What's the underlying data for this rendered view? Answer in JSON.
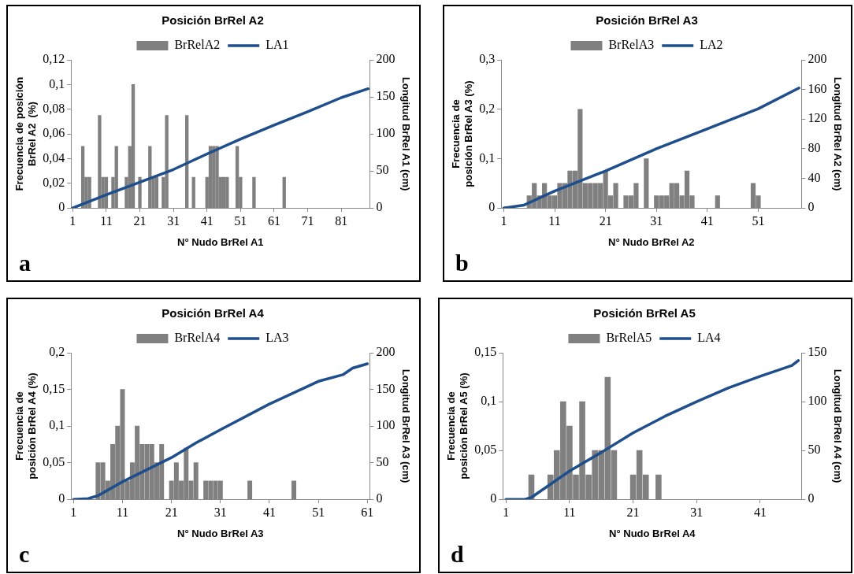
{
  "chart_data": [
    {
      "type": "bar",
      "title": "Posición BrRel A2",
      "xlabel": "N° Nudo BrRel A1",
      "ylabel": "Frecuencia de posición BrRel A2  (%)",
      "y2label": "Longitud BrRel A1 (cm)",
      "annotations": [
        "a"
      ],
      "legend": "top",
      "xlim": [
        0.5,
        89.5
      ],
      "xticks": [
        1,
        11,
        21,
        31,
        41,
        51,
        61,
        71,
        81
      ],
      "ylim": [
        0,
        0.12
      ],
      "yticks": [
        {
          "value": 0,
          "label": "0"
        },
        {
          "value": 0.02,
          "label": "0,02"
        },
        {
          "value": 0.04,
          "label": "0,04"
        },
        {
          "value": 0.06,
          "label": "0,06"
        },
        {
          "value": 0.08,
          "label": "0,08"
        },
        {
          "value": 0.1,
          "label": "0,1"
        },
        {
          "value": 0.12,
          "label": "0,12"
        }
      ],
      "y2lim": [
        0,
        200
      ],
      "y2ticks": [
        0,
        50,
        100,
        150,
        200
      ],
      "series": [
        {
          "name": "BrRelA2",
          "color": "#808080",
          "x": [
            4,
            5,
            6,
            9,
            10,
            11,
            13,
            14,
            17,
            18,
            19,
            21,
            24,
            25,
            26,
            28,
            29,
            35,
            37,
            41,
            42,
            43,
            44,
            45,
            46,
            47,
            50,
            51,
            55,
            64
          ],
          "values": [
            0.05,
            0.025,
            0.025,
            0.075,
            0.025,
            0.025,
            0.025,
            0.05,
            0.025,
            0.05,
            0.1,
            0.025,
            0.05,
            0.025,
            0.025,
            0.025,
            0.075,
            0.075,
            0.025,
            0.025,
            0.05,
            0.05,
            0.05,
            0.025,
            0.025,
            0.025,
            0.05,
            0.025,
            0.025,
            0.025
          ]
        },
        {
          "name": "LA1",
          "type": "line",
          "axis": "y2",
          "color": "#1f4e8c",
          "x": [
            1,
            11,
            21,
            31,
            41,
            51,
            61,
            71,
            81,
            89
          ],
          "values": [
            0,
            18,
            35,
            52,
            73,
            93,
            112,
            130,
            149,
            161
          ]
        }
      ]
    },
    {
      "type": "bar",
      "title": "Posición BrRel A3",
      "xlabel": "N° Nudo BrRel A2",
      "ylabel": "Frecuencia de posición BrRel A3 (%)",
      "y2label": "Longitud BrRel A2 (cm)",
      "annotations": [
        "b"
      ],
      "legend": "top",
      "xlim": [
        0.5,
        59.5
      ],
      "xticks": [
        1,
        11,
        21,
        31,
        41,
        51
      ],
      "ylim": [
        0,
        0.3
      ],
      "yticks": [
        {
          "value": 0,
          "label": "0"
        },
        {
          "value": 0.1,
          "label": "0,1"
        },
        {
          "value": 0.2,
          "label": "0,2"
        },
        {
          "value": 0.3,
          "label": "0,3"
        }
      ],
      "y2lim": [
        0,
        200
      ],
      "y2ticks": [
        0,
        40,
        80,
        120,
        160,
        200
      ],
      "series": [
        {
          "name": "BrRelA3",
          "color": "#808080",
          "x": [
            6,
            7,
            8,
            9,
            10,
            11,
            12,
            13,
            14,
            15,
            16,
            17,
            18,
            19,
            20,
            21,
            22,
            23,
            25,
            26,
            27,
            29,
            31,
            32,
            33,
            34,
            35,
            36,
            37,
            38,
            43,
            50,
            51
          ],
          "values": [
            0.025,
            0.05,
            0.025,
            0.05,
            0.025,
            0.025,
            0.05,
            0.05,
            0.075,
            0.075,
            0.2,
            0.05,
            0.05,
            0.05,
            0.05,
            0.075,
            0.025,
            0.05,
            0.025,
            0.025,
            0.05,
            0.1,
            0.025,
            0.025,
            0.025,
            0.05,
            0.05,
            0.025,
            0.075,
            0.025,
            0.025,
            0.05,
            0.025
          ]
        },
        {
          "name": "LA2",
          "type": "line",
          "axis": "y2",
          "color": "#1f4e8c",
          "x": [
            1,
            5,
            11,
            21,
            31,
            41,
            51,
            59
          ],
          "values": [
            0,
            4,
            23,
            50,
            80,
            107,
            134,
            162
          ]
        }
      ]
    },
    {
      "type": "bar",
      "title": "Posición BrRel A4",
      "xlabel": "N° Nudo BrRel A3",
      "ylabel": "Frecuencia de posición BrRel A4 (%)",
      "y2label": "Longitud BrRel A3 (cm)",
      "annotations": [
        "c"
      ],
      "legend": "top",
      "xlim": [
        0.5,
        61.5
      ],
      "xticks": [
        1,
        11,
        21,
        31,
        41,
        51,
        61
      ],
      "ylim": [
        0,
        0.2
      ],
      "yticks": [
        {
          "value": 0,
          "label": "0"
        },
        {
          "value": 0.05,
          "label": "0,05"
        },
        {
          "value": 0.1,
          "label": "0,1"
        },
        {
          "value": 0.15,
          "label": "0,15"
        },
        {
          "value": 0.2,
          "label": "0,2"
        }
      ],
      "y2lim": [
        0,
        200
      ],
      "y2ticks": [
        0,
        50,
        100,
        150,
        200
      ],
      "series": [
        {
          "name": "BrRelA4",
          "color": "#808080",
          "x": [
            6,
            7,
            8,
            9,
            10,
            11,
            12,
            13,
            14,
            15,
            16,
            17,
            18,
            19,
            21,
            22,
            23,
            24,
            25,
            26,
            28,
            29,
            30,
            31,
            37,
            46
          ],
          "values": [
            0.05,
            0.05,
            0.025,
            0.075,
            0.1,
            0.15,
            0.025,
            0.05,
            0.1,
            0.075,
            0.075,
            0.075,
            0.05,
            0.075,
            0.025,
            0.05,
            0.025,
            0.07,
            0.025,
            0.05,
            0.025,
            0.025,
            0.025,
            0.025,
            0.025,
            0.025
          ]
        },
        {
          "name": "LA3",
          "type": "line",
          "axis": "y2",
          "color": "#1f4e8c",
          "x": [
            1,
            4,
            6,
            11,
            21,
            26,
            31,
            41,
            51,
            56,
            58,
            61
          ],
          "values": [
            0,
            1,
            5,
            24,
            57,
            77,
            95,
            130,
            161,
            170,
            179,
            185
          ]
        }
      ]
    },
    {
      "type": "bar",
      "title": "Posición BrRel A5",
      "xlabel": "N° Nudo BrRel A4",
      "ylabel": "Frecuencia de posición BrRel A5 (%)",
      "y2label": "Longitud BrRel A4 (cm)",
      "annotations": [
        "d"
      ],
      "legend": "top",
      "xlim": [
        0.5,
        47.5
      ],
      "xticks": [
        1,
        11,
        21,
        31,
        41
      ],
      "ylim": [
        0,
        0.15
      ],
      "yticks": [
        {
          "value": 0,
          "label": "0"
        },
        {
          "value": 0.05,
          "label": "0,05"
        },
        {
          "value": 0.1,
          "label": "0,1"
        },
        {
          "value": 0.15,
          "label": "0,15"
        }
      ],
      "y2lim": [
        0,
        150
      ],
      "y2ticks": [
        0,
        50,
        100,
        150
      ],
      "series": [
        {
          "name": "BrRelA5",
          "color": "#808080",
          "x": [
            5,
            8,
            9,
            10,
            11,
            12,
            13,
            14,
            15,
            16,
            17,
            18,
            21,
            22,
            23,
            25
          ],
          "values": [
            0.025,
            0.025,
            0.05,
            0.1,
            0.075,
            0.025,
            0.1,
            0.025,
            0.05,
            0.05,
            0.125,
            0.05,
            0.025,
            0.05,
            0.025,
            0.025
          ]
        },
        {
          "name": "LA4",
          "type": "line",
          "axis": "y2",
          "color": "#1f4e8c",
          "x": [
            1,
            4,
            5,
            11,
            16,
            21,
            26,
            31,
            36,
            41,
            46,
            47
          ],
          "values": [
            0,
            0,
            2,
            29,
            48,
            68,
            85,
            100,
            114,
            126,
            137,
            142
          ]
        }
      ]
    }
  ]
}
